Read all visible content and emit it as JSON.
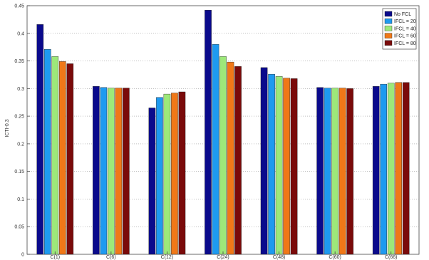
{
  "chart_data": {
    "type": "bar",
    "title": "",
    "xlabel": "",
    "ylabel": "ICTI-0.3",
    "ylim": [
      0,
      0.45
    ],
    "yticks": [
      "0",
      "0.05",
      "0.1",
      "0.15",
      "0.2",
      "0.25",
      "0.3",
      "0.35",
      "0.4",
      "0.45"
    ],
    "grid": "y-dotted",
    "legend_position": "top-right",
    "categories": [
      "C(1)",
      "C(6)",
      "C(12)",
      "C(24)",
      "C(48)",
      "C(60)",
      "C(66)"
    ],
    "series": [
      {
        "name": "No FCL",
        "color": "#0a0a8c",
        "values": [
          0.416,
          0.304,
          0.265,
          0.442,
          0.338,
          0.302,
          0.304
        ]
      },
      {
        "name": "IFCL = 20",
        "color": "#1e9af0",
        "values": [
          0.371,
          0.302,
          0.284,
          0.38,
          0.326,
          0.301,
          0.308
        ]
      },
      {
        "name": "IFCL = 40",
        "color": "#9de87a",
        "values": [
          0.358,
          0.301,
          0.29,
          0.358,
          0.322,
          0.301,
          0.31
        ]
      },
      {
        "name": "IFCL = 60",
        "color": "#f07818",
        "values": [
          0.349,
          0.301,
          0.292,
          0.348,
          0.319,
          0.301,
          0.311
        ]
      },
      {
        "name": "IFCL = 80",
        "color": "#7a0a0a",
        "values": [
          0.345,
          0.301,
          0.294,
          0.34,
          0.318,
          0.3,
          0.311
        ]
      }
    ]
  }
}
